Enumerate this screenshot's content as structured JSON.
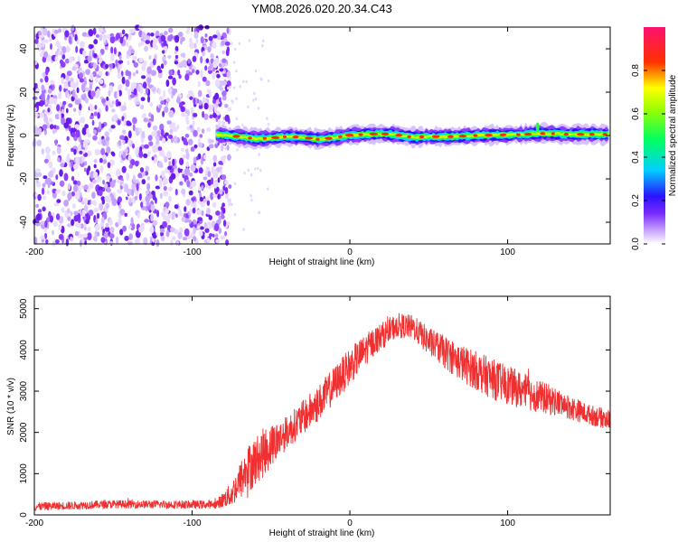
{
  "title": "YM08.2026.020.20.34.C43",
  "chart_data": [
    {
      "type": "heatmap",
      "name": "spectrogram",
      "xlabel": "Height of straight line (km)",
      "ylabel": "Frequency (Hz)",
      "xlim": [
        -200,
        165
      ],
      "ylim": [
        -50,
        50
      ],
      "xticks": [
        -200,
        -100,
        0,
        100
      ],
      "yticks": [
        -40,
        -20,
        0,
        20,
        40
      ],
      "noise_region": {
        "x_from": -200,
        "x_to": -80,
        "freq_from": -50,
        "freq_to": 50,
        "amplitude_range": [
          0.05,
          0.25
        ]
      },
      "signal_ridge": {
        "x": [
          -85,
          -70,
          -60,
          -50,
          -40,
          -30,
          -20,
          -10,
          0,
          10,
          20,
          30,
          40,
          50,
          60,
          70,
          80,
          90,
          100,
          110,
          120,
          130,
          140,
          150,
          165
        ],
        "freq": [
          0.5,
          -0.5,
          -1.5,
          -1.2,
          -0.5,
          -0.8,
          -1.8,
          -1.0,
          0.2,
          0.5,
          0.8,
          0.3,
          -0.8,
          -0.5,
          -0.6,
          -0.3,
          0.0,
          0.2,
          0.3,
          0.5,
          1.0,
          0.8,
          0.5,
          0.6,
          0.5
        ]
      },
      "colorbar": {
        "label": "Normalized spectral amplitude",
        "range": [
          0,
          1
        ],
        "ticks": [
          "0.0",
          "0.2",
          "0.4",
          "0.6",
          "0.8"
        ],
        "colors": [
          "#ffffff",
          "#9a4dff",
          "#3311ff",
          "#00e6ff",
          "#00ff40",
          "#ffff00",
          "#ff0000",
          "#ff1493"
        ]
      }
    },
    {
      "type": "line",
      "name": "snr",
      "xlabel": "Height of straight line (km)",
      "ylabel": "SNR (10 * v/v)",
      "xlim": [
        -200,
        165
      ],
      "ylim": [
        0,
        5300
      ],
      "xticks": [
        -200,
        -100,
        0,
        100
      ],
      "yticks": [
        0,
        1000,
        2000,
        3000,
        4000,
        5000
      ],
      "color": "#f03030",
      "envelope_x": [
        -200,
        -150,
        -100,
        -85,
        -75,
        -65,
        -55,
        -40,
        -20,
        0,
        15,
        30,
        40,
        50,
        70,
        90,
        110,
        130,
        150,
        165
      ],
      "envelope_y": [
        200,
        260,
        250,
        250,
        500,
        1100,
        1500,
        2000,
        2700,
        3600,
        4200,
        4600,
        4550,
        4200,
        3700,
        3300,
        3000,
        2750,
        2450,
        2300
      ],
      "noise_amplitude": [
        100,
        100,
        100,
        100,
        300,
        600,
        600,
        400,
        450,
        450,
        350,
        300,
        300,
        350,
        450,
        500,
        450,
        350,
        250,
        250
      ]
    }
  ]
}
